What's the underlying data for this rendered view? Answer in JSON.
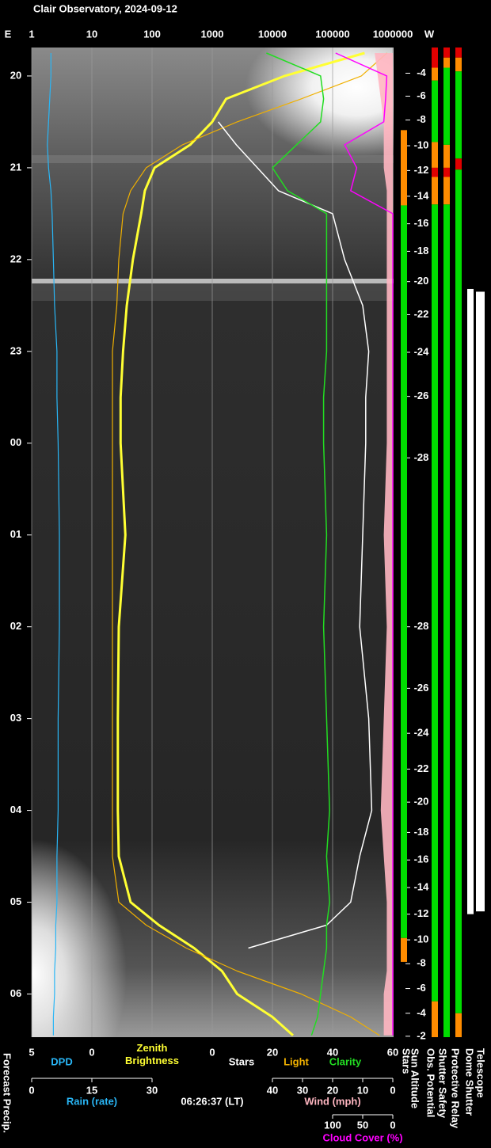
{
  "chart_data": {
    "type": "line",
    "title": "Clair Observatory, 2024-09-12",
    "left_label": "E",
    "right_label": "W",
    "timestamp": "06:26:37 (LT)",
    "forecast_label": "Forecast Precip.",
    "time_lim": [
      19.69,
      30.47
    ],
    "time_ticks": [
      20,
      21,
      22,
      23,
      {
        "value": 24,
        "label": "00"
      },
      {
        "value": 25,
        "label": "01"
      },
      {
        "value": 26,
        "label": "02"
      },
      {
        "value": 27,
        "label": "03"
      },
      {
        "value": 28,
        "label": "04"
      },
      {
        "value": 29,
        "label": "05"
      },
      {
        "value": 30,
        "label": "06"
      }
    ],
    "x": [
      19.75,
      20,
      20.25,
      20.5,
      20.75,
      21,
      21.25,
      21.5,
      22,
      22.5,
      23,
      23.5,
      24,
      25,
      26,
      27,
      28,
      28.5,
      29,
      29.25,
      29.5,
      29.75,
      30,
      30.25,
      30.45
    ],
    "axes": [
      {
        "lim": [
          1,
          1000000
        ],
        "log": true,
        "grid": true,
        "ticks": [
          1,
          10,
          100,
          1000,
          10000,
          100000,
          1000000
        ],
        "series": [
          {
            "name": "Zenith Brightness",
            "color": "#ffff33",
            "width": 3,
            "values": [
              340000,
              16000,
              1700,
              1000,
              430,
              110,
              76,
              66,
              48,
              38,
              33,
              30,
              30,
              36,
              28,
              27,
              27,
              28,
              44,
              130,
              500,
              1450,
              2600,
              10000,
              22000
            ]
          },
          {
            "name": "Light",
            "color": "#f0b000",
            "width": 1.2,
            "values": [
              800000,
              300000,
              30000,
              2600,
              320,
              80,
              44,
              33,
              28,
              26,
              22,
              22,
              22,
              22,
              22,
              22,
              22,
              22,
              28,
              80,
              370,
              2600,
              30000,
              200000,
              600000
            ]
          }
        ]
      },
      {
        "lim": [
          5,
          0
        ],
        "ticks": [
          5,
          0
        ],
        "series": [
          {
            "name": "DPD",
            "color": "#29b6f6",
            "width": 1.2,
            "values": [
              3.4,
              3.4,
              3.5,
              3.6,
              3.7,
              3.6,
              3.4,
              3.3,
              3.2,
              3.1,
              2.9,
              2.9,
              2.8,
              2.7,
              2.7,
              2.8,
              2.8,
              2.9,
              2.9,
              3.0,
              3.0,
              3.1,
              3.1,
              3.2,
              3.2
            ]
          }
        ]
      },
      {
        "lim": [
          0,
          60
        ],
        "ticks": [
          0,
          20,
          40,
          60
        ],
        "series": [
          {
            "name": "Stars",
            "color": "#ffffff",
            "width": 1.5,
            "values": [
              null,
              null,
              null,
              2,
              8,
              15,
              22,
              40,
              44,
              50,
              52,
              51,
              51,
              50,
              49,
              52,
              53,
              49,
              46,
              38,
              12,
              null,
              null,
              null,
              null
            ]
          },
          {
            "name": "Clarity",
            "color": "#22dd22",
            "width": 1.5,
            "values": [
              18,
              36,
              37,
              36,
              28,
              20,
              25,
              38,
              38,
              38,
              38,
              37,
              37,
              38,
              37,
              38,
              39,
              38,
              39,
              38,
              38,
              37,
              36,
              35,
              33
            ]
          }
        ]
      },
      {
        "lim": [
          0,
          30
        ],
        "ticks": [
          0,
          15,
          30
        ],
        "label": "Rain (rate)",
        "label_color": "#29b6f6",
        "series": []
      },
      {
        "lim": [
          40,
          0
        ],
        "ticks": [
          40,
          30,
          20,
          10,
          0
        ],
        "label": "Wind (mph)",
        "label_color": "#ffb6c1",
        "series": [
          {
            "color": "#ffb6c1",
            "fill": true,
            "values": [
              6,
              5,
              4,
              3,
              3,
              3,
              2,
              2,
              2,
              2,
              2,
              2,
              2,
              3,
              2,
              3,
              4,
              3,
              2,
              2,
              2,
              2,
              3,
              3,
              3
            ]
          }
        ]
      },
      {
        "lim": [
          100,
          0
        ],
        "ticks": [
          100,
          50,
          0
        ],
        "label": "Cloud Cover (%)",
        "label_color": "#ff00ff",
        "series": [
          {
            "color": "#ff00ff",
            "width": 1.5,
            "values": [
              95,
              10,
              12,
              15,
              80,
              60,
              70,
              0,
              0,
              0,
              0,
              0,
              0,
              0,
              0,
              0,
              0,
              0,
              0,
              0,
              0,
              0,
              0,
              0,
              0
            ]
          }
        ]
      }
    ],
    "sun_altitude": {
      "label": "Sun Altitude",
      "ticks": [
        {
          "value": 19.97,
          "label": "-4"
        },
        {
          "value": 20.22,
          "label": "-6"
        },
        {
          "value": 20.48,
          "label": "-8"
        },
        {
          "value": 20.76,
          "label": "-10"
        },
        {
          "value": 21.03,
          "label": "-12"
        },
        {
          "value": 21.31,
          "label": "-14"
        },
        {
          "value": 21.61,
          "label": "-16"
        },
        {
          "value": 21.91,
          "label": "-18"
        },
        {
          "value": 22.24,
          "label": "-20"
        },
        {
          "value": 22.6,
          "label": "-22"
        },
        {
          "value": 23.01,
          "label": "-24"
        },
        {
          "value": 23.49,
          "label": "-26"
        },
        {
          "value": 24.16,
          "label": "-28"
        },
        {
          "value": 26.0,
          "label": "-28"
        },
        {
          "value": 26.67,
          "label": "-26"
        },
        {
          "value": 27.16,
          "label": "-24"
        },
        {
          "value": 27.55,
          "label": "-22"
        },
        {
          "value": 27.91,
          "label": "-20"
        },
        {
          "value": 28.24,
          "label": "-18"
        },
        {
          "value": 28.54,
          "label": "-16"
        },
        {
          "value": 28.84,
          "label": "-14"
        },
        {
          "value": 29.13,
          "label": "-12"
        },
        {
          "value": 29.41,
          "label": "-10"
        },
        {
          "value": 29.67,
          "label": "-8"
        },
        {
          "value": 29.94,
          "label": "-6"
        },
        {
          "value": 30.21,
          "label": "-4"
        },
        {
          "value": 30.46,
          "label": "-2"
        }
      ]
    },
    "status": [
      {
        "name": "Stars",
        "segments": [
          {
            "from": 20.59,
            "to": 21.41,
            "color": "#ff8c00"
          },
          {
            "from": 21.41,
            "to": 29.39,
            "color": "#00dd00"
          },
          {
            "from": 29.39,
            "to": 29.65,
            "color": "#ff8c00"
          }
        ]
      },
      {
        "name": "Obs. Potential",
        "segments": [
          {
            "from": 19.69,
            "to": 19.91,
            "color": "#e00000"
          },
          {
            "from": 19.91,
            "to": 20.05,
            "color": "#ff8c00"
          },
          {
            "from": 20.05,
            "to": 20.72,
            "color": "#00dd00"
          },
          {
            "from": 20.72,
            "to": 21.0,
            "color": "#ff8c00"
          },
          {
            "from": 21.0,
            "to": 21.1,
            "color": "#e00000"
          },
          {
            "from": 21.1,
            "to": 21.4,
            "color": "#ff8c00"
          },
          {
            "from": 21.4,
            "to": 30.08,
            "color": "#00dd00"
          },
          {
            "from": 30.08,
            "to": 30.47,
            "color": "#ff8c00"
          }
        ]
      },
      {
        "name": "Shutter Safety",
        "segments": [
          {
            "from": 19.69,
            "to": 19.8,
            "color": "#e00000"
          },
          {
            "from": 19.8,
            "to": 19.91,
            "color": "#ff8c00"
          },
          {
            "from": 19.91,
            "to": 20.75,
            "color": "#00dd00"
          },
          {
            "from": 20.75,
            "to": 21.0,
            "color": "#ff8c00"
          },
          {
            "from": 21.0,
            "to": 21.1,
            "color": "#e00000"
          },
          {
            "from": 21.1,
            "to": 21.4,
            "color": "#ff8c00"
          },
          {
            "from": 21.4,
            "to": 30.47,
            "color": "#00dd00"
          }
        ]
      },
      {
        "name": "Protective Relay",
        "segments": [
          {
            "from": 19.69,
            "to": 19.8,
            "color": "#e00000"
          },
          {
            "from": 19.8,
            "to": 19.95,
            "color": "#ff8c00"
          },
          {
            "from": 19.95,
            "to": 20.9,
            "color": "#00dd00"
          },
          {
            "from": 20.9,
            "to": 21.02,
            "color": "#e00000"
          },
          {
            "from": 21.02,
            "to": 30.21,
            "color": "#00dd00"
          },
          {
            "from": 30.21,
            "to": 30.47,
            "color": "#ff8c00"
          }
        ]
      },
      {
        "name": "Dome Shutter",
        "segments": [
          {
            "from": 22.32,
            "to": 29.13,
            "color": "#ffffff"
          }
        ]
      },
      {
        "name": "Telescope",
        "segments": [
          {
            "from": 22.35,
            "to": 29.1,
            "color": "#ffffff"
          }
        ]
      }
    ]
  }
}
